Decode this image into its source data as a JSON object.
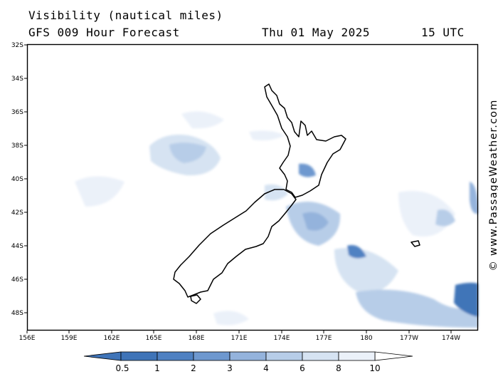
{
  "header": {
    "variable": "Visibility (nautical miles)",
    "model": "GFS 009 Hour Forecast",
    "date": "Thu 01 May 2025",
    "time": "15 UTC"
  },
  "credit": "© www.PassageWeather.com",
  "map": {
    "lat_ticks": [
      "32S",
      "34S",
      "36S",
      "38S",
      "40S",
      "42S",
      "44S",
      "46S",
      "48S"
    ],
    "lon_ticks": [
      "156E",
      "159E",
      "162E",
      "165E",
      "168E",
      "171E",
      "174E",
      "177E",
      "180",
      "177W",
      "174W"
    ],
    "region": "New Zealand"
  },
  "colorbar": {
    "labels": [
      "0.5",
      "1",
      "2",
      "3",
      "4",
      "6",
      "8",
      "10"
    ],
    "colors": [
      "#3f74b8",
      "#4f81c2",
      "#6e98cf",
      "#94b3dc",
      "#b7cde8",
      "#d6e3f2",
      "#ebf1f9",
      "#ffffff"
    ]
  }
}
